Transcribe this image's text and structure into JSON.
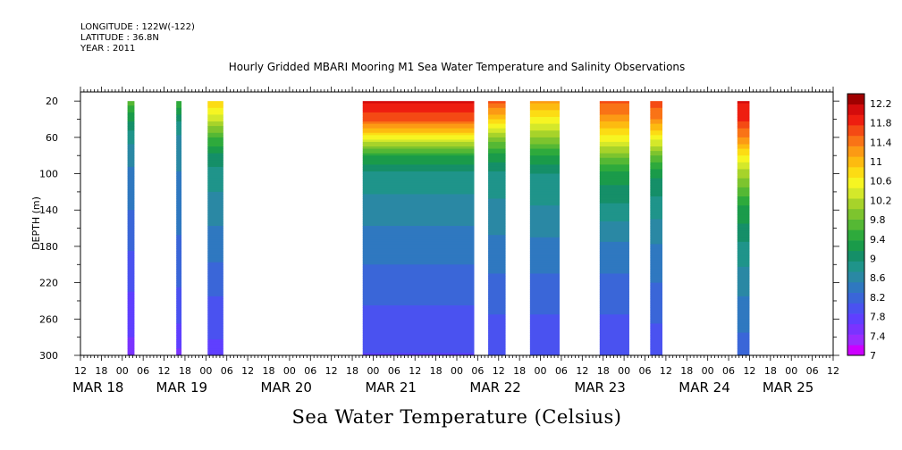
{
  "header": {
    "longitude": "LONGITUDE : 122W(-122)",
    "latitude": "LATITUDE : 36.8N",
    "year": "YEAR : 2011"
  },
  "chart_data": {
    "type": "heatmap",
    "title": "Hourly Gridded MBARI Mooring M1 Sea Water Temperature and Salinity Observations",
    "xlabel": "Sea Water Temperature (Celsius)",
    "ylabel": "DEPTH (m)",
    "xlim_hours": [
      -36,
      180
    ],
    "ylim": [
      300,
      10
    ],
    "y_ticks": [
      20,
      60,
      100,
      140,
      180,
      220,
      260,
      300
    ],
    "x_hour_ticks": [
      -36,
      -30,
      -24,
      -18,
      -12,
      -6,
      0,
      6,
      12,
      18,
      24,
      30,
      36,
      42,
      48,
      54,
      60,
      66,
      72,
      78,
      84,
      90,
      96,
      102,
      108,
      114,
      120,
      126,
      132,
      138,
      144,
      150,
      156,
      162,
      168,
      174,
      180
    ],
    "x_hour_labels": [
      "12",
      "18",
      "00",
      "06",
      "12",
      "18",
      "00",
      "06",
      "12",
      "18",
      "00",
      "06",
      "12",
      "18",
      "00",
      "06",
      "12",
      "18",
      "00",
      "06",
      "12",
      "18",
      "00",
      "06",
      "12",
      "18",
      "00",
      "06",
      "12",
      "18",
      "00",
      "06",
      "12",
      "18",
      "00",
      "06",
      "12"
    ],
    "day_labels": [
      {
        "hour": -36,
        "label": "MAR 18"
      },
      {
        "hour": -12,
        "label": "MAR 19"
      },
      {
        "hour": 18,
        "label": "MAR 20"
      },
      {
        "hour": 48,
        "label": "MAR 21"
      },
      {
        "hour": 78,
        "label": "MAR 22"
      },
      {
        "hour": 108,
        "label": "MAR 23"
      },
      {
        "hour": 138,
        "label": "MAR 24"
      },
      {
        "hour": 162,
        "label": "MAR 25"
      }
    ],
    "colorbar_labels": [
      "12.2",
      "11.8",
      "11.4",
      "11",
      "10.6",
      "10.2",
      "9.8",
      "9.4",
      "9",
      "8.6",
      "8.2",
      "7.8",
      "7.4",
      "7"
    ],
    "colorbar_range": [
      7,
      12.4
    ],
    "palette": [
      "#cc00ff",
      "#9a2cff",
      "#7a33ff",
      "#5f3fff",
      "#4a52f0",
      "#3a66d8",
      "#2f78c0",
      "#2a88a4",
      "#1f948a",
      "#158f68",
      "#1a9b4a",
      "#2eaa3c",
      "#55b834",
      "#7dc42e",
      "#a7d32a",
      "#d4e82a",
      "#f6f522",
      "#fcdc14",
      "#fdbb10",
      "#fc9a14",
      "#f97316",
      "#f44a14",
      "#ee1e10",
      "#d40c0c",
      "#a00000"
    ],
    "segments": [
      {
        "start_hour": -22.5,
        "end_hour": -20.5,
        "profile": [
          [
            20,
            9.7
          ],
          [
            40,
            9.2
          ],
          [
            60,
            8.8
          ],
          [
            80,
            8.6
          ],
          [
            100,
            8.45
          ],
          [
            140,
            8.3
          ],
          [
            180,
            8.1
          ],
          [
            220,
            7.9
          ],
          [
            260,
            7.75
          ],
          [
            300,
            7.55
          ]
        ]
      },
      {
        "start_hour": -8.5,
        "end_hour": -7.0,
        "profile": [
          [
            20,
            9.6
          ],
          [
            40,
            9.0
          ],
          [
            60,
            8.7
          ],
          [
            80,
            8.6
          ],
          [
            100,
            8.5
          ],
          [
            140,
            8.4
          ],
          [
            180,
            8.25
          ],
          [
            220,
            8.1
          ],
          [
            260,
            7.9
          ],
          [
            300,
            7.6
          ]
        ]
      },
      {
        "start_hour": 0.5,
        "end_hour": 5.0,
        "profile": [
          [
            20,
            10.9
          ],
          [
            40,
            10.3
          ],
          [
            60,
            9.6
          ],
          [
            80,
            9.1
          ],
          [
            100,
            8.85
          ],
          [
            140,
            8.6
          ],
          [
            180,
            8.4
          ],
          [
            220,
            8.15
          ],
          [
            260,
            7.95
          ],
          [
            300,
            7.8
          ]
        ]
      },
      {
        "start_hour": 45.0,
        "end_hour": 77.0,
        "profile": [
          [
            20,
            12.0
          ],
          [
            40,
            11.6
          ],
          [
            60,
            10.6
          ],
          [
            80,
            9.4
          ],
          [
            100,
            8.9
          ],
          [
            140,
            8.6
          ],
          [
            180,
            8.4
          ],
          [
            220,
            8.2
          ],
          [
            260,
            8.0
          ],
          [
            300,
            7.85
          ]
        ]
      },
      {
        "start_hour": 81.0,
        "end_hour": 86.0,
        "profile": [
          [
            20,
            11.6
          ],
          [
            40,
            10.9
          ],
          [
            60,
            10.0
          ],
          [
            80,
            9.3
          ],
          [
            100,
            8.9
          ],
          [
            140,
            8.65
          ],
          [
            180,
            8.45
          ],
          [
            220,
            8.25
          ],
          [
            260,
            8.05
          ],
          [
            300,
            7.9
          ]
        ]
      },
      {
        "start_hour": 93.0,
        "end_hour": 101.5,
        "profile": [
          [
            20,
            11.2
          ],
          [
            40,
            10.6
          ],
          [
            60,
            10.0
          ],
          [
            80,
            9.4
          ],
          [
            100,
            8.95
          ],
          [
            140,
            8.7
          ],
          [
            180,
            8.45
          ],
          [
            220,
            8.25
          ],
          [
            260,
            8.05
          ],
          [
            300,
            7.9
          ]
        ]
      },
      {
        "start_hour": 113.0,
        "end_hour": 121.5,
        "profile": [
          [
            20,
            11.6
          ],
          [
            40,
            11.2
          ],
          [
            60,
            10.6
          ],
          [
            80,
            9.9
          ],
          [
            100,
            9.3
          ],
          [
            140,
            8.85
          ],
          [
            180,
            8.45
          ],
          [
            220,
            8.25
          ],
          [
            260,
            8.05
          ],
          [
            300,
            7.9
          ]
        ]
      },
      {
        "start_hour": 127.5,
        "end_hour": 131.0,
        "profile": [
          [
            20,
            11.7
          ],
          [
            40,
            11.3
          ],
          [
            60,
            10.6
          ],
          [
            80,
            9.8
          ],
          [
            100,
            9.2
          ],
          [
            140,
            8.8
          ],
          [
            180,
            8.5
          ],
          [
            220,
            8.3
          ],
          [
            260,
            8.1
          ],
          [
            300,
            7.95
          ]
        ]
      },
      {
        "start_hour": 152.5,
        "end_hour": 156.0,
        "profile": [
          [
            20,
            12.0
          ],
          [
            40,
            11.8
          ],
          [
            60,
            11.3
          ],
          [
            80,
            10.7
          ],
          [
            100,
            10.1
          ],
          [
            140,
            9.3
          ],
          [
            180,
            8.9
          ],
          [
            220,
            8.6
          ],
          [
            260,
            8.35
          ],
          [
            300,
            8.2
          ]
        ]
      }
    ]
  }
}
